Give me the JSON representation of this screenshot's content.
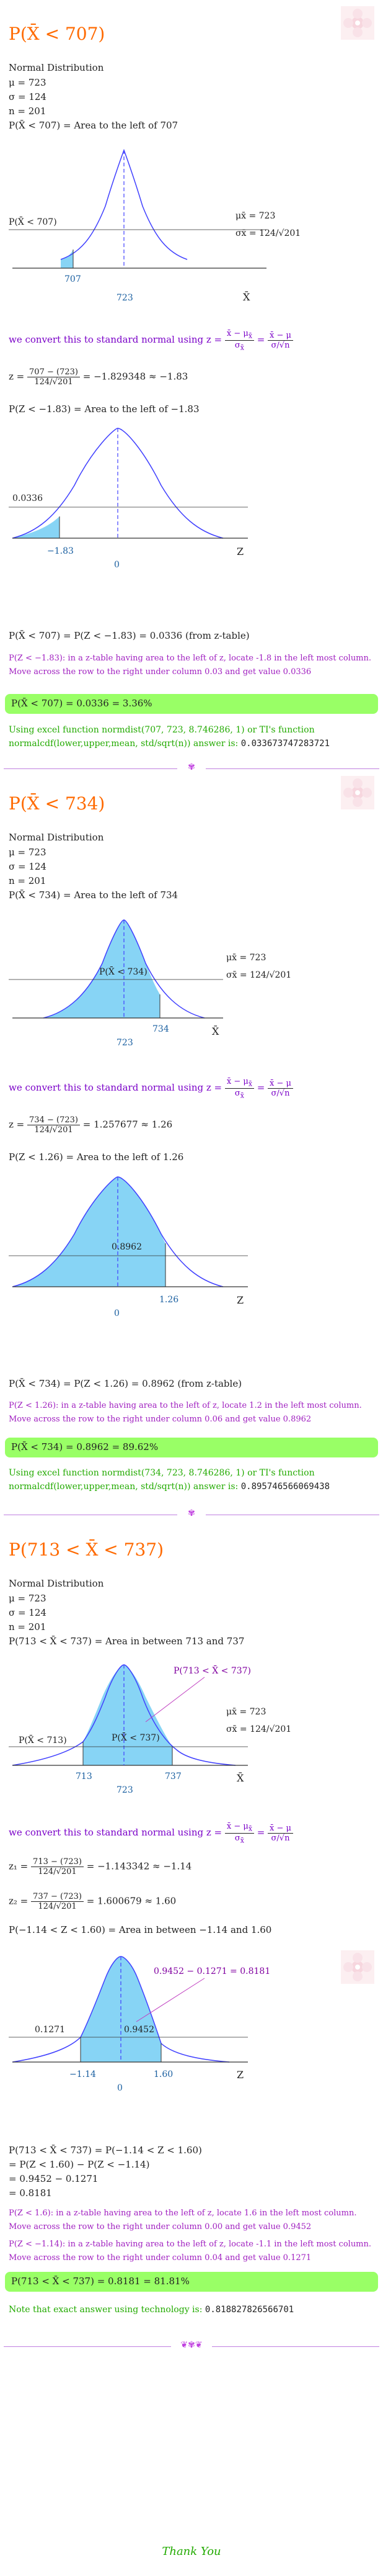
{
  "colors": {
    "heading": "#ff6a00",
    "purple": "#7a00c8",
    "green_box": "#99ff66",
    "green_text": "#22aa00",
    "curve": "#4040ff",
    "shade": "#87d4f5"
  },
  "logo_icon": "flower-logo-icon",
  "part1": {
    "title": "P(X̄ < 707)",
    "dist_label": "Normal Distribution",
    "mu": "μ = 723",
    "sigma": "σ = 124",
    "n": "n = 201",
    "area_stmt": "P(X̄ < 707) = Area to the left of 707",
    "graph1": {
      "shade_label": "P(X̄ < 707)",
      "x_value": "707",
      "mean_value": "723",
      "axis_label": "X̄",
      "mu_x": "μx̄ = 723",
      "sigma_x": "σx̄ = 124/√201"
    },
    "convert_text": "we convert this to standard normal using z =",
    "z_formula": "x̄ − μx̄ / σx̄ = x̄ − μ / σ/√n",
    "z_calc_prefix": "z =",
    "z_num": "707 − (723)",
    "z_den": "124/√201",
    "z_result": "= −1.829348 ≈ −1.83",
    "z_area_stmt": "P(Z < −1.83) = Area to the left of −1.83",
    "graph2": {
      "area_value": "0.0336",
      "z_value": "−1.83",
      "zero": "0",
      "axis_label": "Z"
    },
    "final_stmt": "P(X̄ < 707) = P(Z < −1.83) = 0.0336 (from z-table)",
    "table_note": "P(Z < −1.83): in a z-table having area to the left of z, locate -1.8 in the left most column. Move across the row to the right under column 0.03 and get value 0.0336",
    "answer": "P(X̄ < 707) = 0.0336 = 3.36%",
    "excel_note": "Using excel function normdist(707, 723, 8.746286, 1) or TI's function normalcdf(lower,upper,mean, std/sqrt(n)) answer is:",
    "excel_value": "0.033673747283721"
  },
  "part2": {
    "title": "P(X̄ < 734)",
    "dist_label": "Normal Distribution",
    "mu": "μ = 723",
    "sigma": "σ = 124",
    "n": "n = 201",
    "area_stmt": "P(X̄ < 734) = Area to the left of 734",
    "graph1": {
      "shade_label": "P(X̄ < 734)",
      "x_value": "734",
      "mean_value": "723",
      "axis_label": "X̄",
      "mu_x": "μx̄ = 723",
      "sigma_x": "σx̄ = 124/√201"
    },
    "convert_text": "we convert this to standard normal using z =",
    "z_calc_prefix": "z =",
    "z_num": "734 − (723)",
    "z_den": "124/√201",
    "z_result": "= 1.257677 ≈ 1.26",
    "z_area_stmt": "P(Z < 1.26) = Area to the left of 1.26",
    "graph2": {
      "area_value": "0.8962",
      "z_value": "1.26",
      "zero": "0",
      "axis_label": "Z"
    },
    "final_stmt": "P(X̄ < 734) = P(Z < 1.26) = 0.8962 (from z-table)",
    "table_note": "P(Z < 1.26): in a z-table having area to the left of z, locate 1.2 in the left most column. Move across the row to the right under column 0.06 and get value 0.8962",
    "answer": "P(X̄ < 734) = 0.8962 = 89.62%",
    "excel_note": "Using excel function normdist(734, 723, 8.746286, 1) or TI's function normalcdf(lower,upper,mean, std/sqrt(n)) answer is:",
    "excel_value": "0.895746566069438"
  },
  "part3": {
    "title": "P(713 < X̄ < 737)",
    "dist_label": "Normal Distribution",
    "mu": "μ = 723",
    "sigma": "σ = 124",
    "n": "n = 201",
    "area_stmt": "P(713 < X̄ < 737) = Area in between 713 and 737",
    "graph1": {
      "top_label": "P(713 < X̄ < 737)",
      "left_label": "P(X̄ < 713)",
      "right_label": "P(X̄ < 737)",
      "x_low": "713",
      "x_high": "737",
      "mean_value": "723",
      "axis_label": "X̄",
      "mu_x": "μx̄ = 723",
      "sigma_x": "σx̄ = 124/√201"
    },
    "convert_text": "we convert this to standard normal using z =",
    "z1_prefix": "z₁ =",
    "z1_num": "713 − (723)",
    "z1_den": "124/√201",
    "z1_result": "= −1.143342 ≈ −1.14",
    "z2_prefix": "z₂ =",
    "z2_num": "737 − (723)",
    "z2_den": "124/√201",
    "z2_result": "= 1.600679 ≈ 1.60",
    "z_area_stmt": "P(−1.14 < Z < 1.60) = Area in between −1.14 and 1.60",
    "graph2": {
      "top_label": "0.9452 − 0.1271 = 0.8181",
      "left_area": "0.1271",
      "right_area": "0.9452",
      "z_low": "−1.14",
      "z_high": "1.60",
      "zero": "0",
      "axis_label": "Z"
    },
    "final_line1": "P(713 < X̄ < 737) = P(−1.14 < Z < 1.60)",
    "final_line2": "= P(Z < 1.60) − P(Z < −1.14)",
    "final_line3": "= 0.9452 − 0.1271",
    "final_line4": "= 0.8181",
    "table_note1": "P(Z < 1.6): in a z-table having area to the left of z, locate 1.6 in the left most column. Move across the row to the right under column 0.00 and get value 0.9452",
    "table_note2": "P(Z < −1.14): in a z-table having area to the left of z, locate -1.1 in the left most column. Move across the row to the right under column 0.04 and get value 0.1271",
    "answer": "P(713 < X̄ < 737) = 0.8181 = 81.81%",
    "tech_note": "Note that exact answer using technology is:",
    "tech_value": "0.818827826566701"
  },
  "footer": {
    "thanks": "Thank You"
  }
}
